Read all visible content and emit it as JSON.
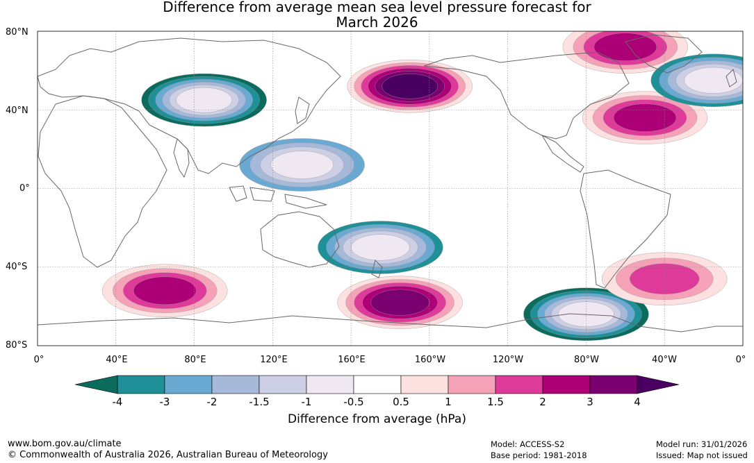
{
  "title": {
    "line1": "Difference from average mean sea level pressure forecast for",
    "line2": "March 2026"
  },
  "map": {
    "lat_labels": [
      "80°N",
      "40°N",
      "0°",
      "40°S",
      "80°S"
    ],
    "lon_labels": [
      "0°",
      "40°E",
      "80°E",
      "120°E",
      "160°E",
      "160°W",
      "120°W",
      "80°W",
      "40°W",
      "0°"
    ],
    "anomaly_regions": [
      {
        "name": "north-pacific-high",
        "lon": -170,
        "lat": 52,
        "value": 4
      },
      {
        "name": "greenland-arctic-high",
        "lon": -60,
        "lat": 72,
        "value": 2
      },
      {
        "name": "north-atlantic-high",
        "lon": -50,
        "lat": 36,
        "value": 2
      },
      {
        "name": "north-atlantic-low",
        "lon": -15,
        "lat": 55,
        "value": -3
      },
      {
        "name": "central-asia-low",
        "lon": 85,
        "lat": 45,
        "value": -4
      },
      {
        "name": "western-pacific-low",
        "lon": 135,
        "lat": 12,
        "value": -2
      },
      {
        "name": "southwest-pacific-low",
        "lon": 175,
        "lat": -30,
        "value": -3
      },
      {
        "name": "southern-indian-high",
        "lon": 65,
        "lat": -52,
        "value": 2
      },
      {
        "name": "south-pacific-high",
        "lon": -175,
        "lat": -58,
        "value": 3
      },
      {
        "name": "southern-ocean-low",
        "lon": -80,
        "lat": -64,
        "value": -4
      },
      {
        "name": "south-atlantic-high",
        "lon": -40,
        "lat": -46,
        "value": 1.5
      }
    ]
  },
  "colorbar": {
    "ticks": [
      "-4",
      "-3",
      "-2",
      "-1.5",
      "-1",
      "-0.5",
      "0.5",
      "1",
      "1.5",
      "2",
      "3",
      "4"
    ],
    "colors": [
      "#0b6b5d",
      "#1f8f98",
      "#6aaad2",
      "#a7b9d9",
      "#cdd0e5",
      "#efe8f2",
      "#ffffff",
      "#fde0e0",
      "#f5a2b8",
      "#de3a99",
      "#ad0077",
      "#7b0070",
      "#4a0060"
    ],
    "title": "Difference from average (hPa)"
  },
  "footer": {
    "url": "www.bom.gov.au/climate",
    "copyright": "© Commonwealth of Australia 2026, Australian Bureau of Meteorology",
    "model": "Model: ACCESS-S2",
    "base_period": "Base period: 1981-2018",
    "model_run": "Model run: 31/01/2026",
    "issued": "Issued: Map not issued"
  }
}
